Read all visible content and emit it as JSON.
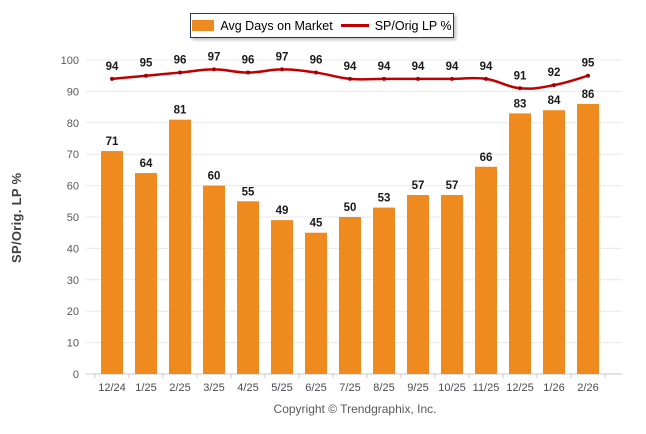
{
  "legend": {
    "bar_label": "Avg Days on Market",
    "line_label": "SP/Orig LP %"
  },
  "y_axis": {
    "title": "SP/Orig. LP %"
  },
  "footer": {
    "copyright": "Copyright © Trendgraphix, Inc."
  },
  "colors": {
    "bar": "#EE8A1E",
    "line": "#C00000",
    "line_marker": "#A50000",
    "grid": "#E8E8E8",
    "axis_line": "#C9C9C9",
    "axis_text": "#595959",
    "x_text": "#4a4a52",
    "data_label": "#1a1a1a"
  },
  "chart_data": {
    "type": "bar",
    "title": "",
    "xlabel": "",
    "ylabel": "SP/Orig. LP %",
    "ylim": [
      0,
      100
    ],
    "grid": true,
    "legend_position": "top",
    "y_ticks": [
      0,
      10,
      20,
      30,
      40,
      50,
      60,
      70,
      80,
      90,
      100
    ],
    "categories": [
      "12/24",
      "1/25",
      "2/25",
      "3/25",
      "4/25",
      "5/25",
      "6/25",
      "7/25",
      "8/25",
      "9/25",
      "10/25",
      "11/25",
      "12/25",
      "1/26",
      "2/26"
    ],
    "series": [
      {
        "name": "Avg Days on Market",
        "type": "bar",
        "values": [
          71,
          64,
          81,
          60,
          55,
          49,
          45,
          50,
          53,
          57,
          57,
          66,
          83,
          84,
          86
        ]
      },
      {
        "name": "SP/Orig LP %",
        "type": "line",
        "values": [
          94,
          95,
          96,
          97,
          96,
          97,
          96,
          94,
          94,
          94,
          94,
          94,
          91,
          92,
          95
        ]
      }
    ]
  }
}
